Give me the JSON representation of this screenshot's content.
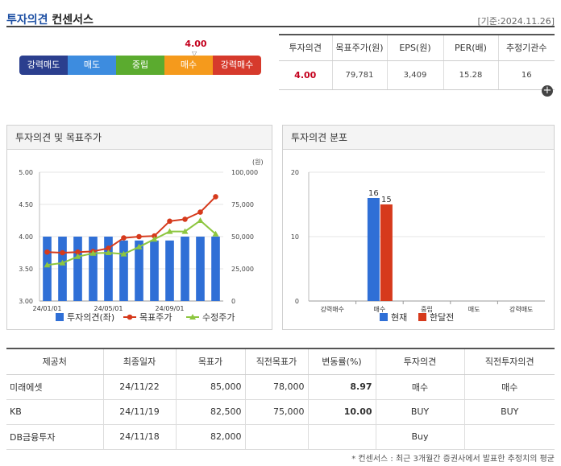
{
  "header": {
    "title_blue": "투자의견",
    "title_dark": "컨센서스",
    "date": "[기준:2024.11.26]"
  },
  "gauge": {
    "score": "4.00",
    "marker": "▽",
    "segments": [
      "강력매도",
      "매도",
      "중립",
      "매수",
      "강력매수"
    ]
  },
  "summary": {
    "headers": [
      "투자의견",
      "목표주가(원)",
      "EPS(원)",
      "PER(배)",
      "추정기관수"
    ],
    "values": [
      "4.00",
      "79,781",
      "3,409",
      "15.28",
      "16"
    ]
  },
  "panel1": {
    "title": "투자의견 및 목표주가"
  },
  "panel2": {
    "title": "투자의견 분포"
  },
  "chart_data": [
    {
      "type": "bar",
      "title": "투자의견 및 목표주가",
      "y_left_ticks": [
        "5.00",
        "4.50",
        "4.00",
        "3.50",
        "3.00"
      ],
      "y_right_ticks": [
        "100,000",
        "75,000",
        "50,000",
        "25,000",
        "0"
      ],
      "y_right_unit": "(원)",
      "x_ticks": [
        "24/01/01",
        "24/05/01",
        "24/09/01"
      ],
      "ylim_left": [
        3,
        5
      ],
      "ylim_right": [
        0,
        100000
      ],
      "series": [
        {
          "name": "투자의견(좌)",
          "type": "bar",
          "axis": "left",
          "color": "#2f6fd6",
          "values": [
            4.0,
            4.0,
            4.0,
            4.0,
            4.0,
            3.94,
            3.94,
            3.94,
            3.94,
            4.0,
            4.0,
            4.0
          ]
        },
        {
          "name": "목표주가",
          "type": "line",
          "axis": "right",
          "color": "#d63a1c",
          "values": [
            38000,
            37500,
            38000,
            38500,
            41000,
            49000,
            50000,
            50500,
            62000,
            63500,
            69000,
            81000
          ]
        },
        {
          "name": "수정주가",
          "type": "line",
          "axis": "right",
          "color": "#8dc63f",
          "values": [
            28000,
            29500,
            34500,
            37000,
            37500,
            36500,
            42000,
            48000,
            54000,
            54000,
            62500,
            52000
          ]
        }
      ]
    },
    {
      "type": "bar",
      "title": "투자의견 분포",
      "categories": [
        "강력매수",
        "매수",
        "중립",
        "매도",
        "강력매도"
      ],
      "y_ticks": [
        "20",
        "10",
        "0"
      ],
      "ylim": [
        0,
        20
      ],
      "series": [
        {
          "name": "현재",
          "color": "#2f6fd6",
          "values": [
            0,
            16,
            0,
            0,
            0
          ]
        },
        {
          "name": "한달전",
          "color": "#d63a1c",
          "values": [
            0,
            15,
            0,
            0,
            0
          ]
        }
      ]
    }
  ],
  "list": {
    "headers": [
      "제공처",
      "최종일자",
      "목표가",
      "직전목표가",
      "변동률(%)",
      "투자의견",
      "직전투자의견"
    ],
    "rows": [
      [
        "미래에셋",
        "24/11/22",
        "85,000",
        "78,000",
        "8.97",
        "매수",
        "매수"
      ],
      [
        "KB",
        "24/11/19",
        "82,500",
        "75,000",
        "10.00",
        "BUY",
        "BUY"
      ],
      [
        "DB금융투자",
        "24/11/18",
        "82,000",
        "",
        "",
        "Buy",
        ""
      ]
    ],
    "more_icon": "plus-circle-icon"
  },
  "footnote": "* 컨센서스 : 최근 3개월간 증권사에서 발표한 추정치의 평균"
}
